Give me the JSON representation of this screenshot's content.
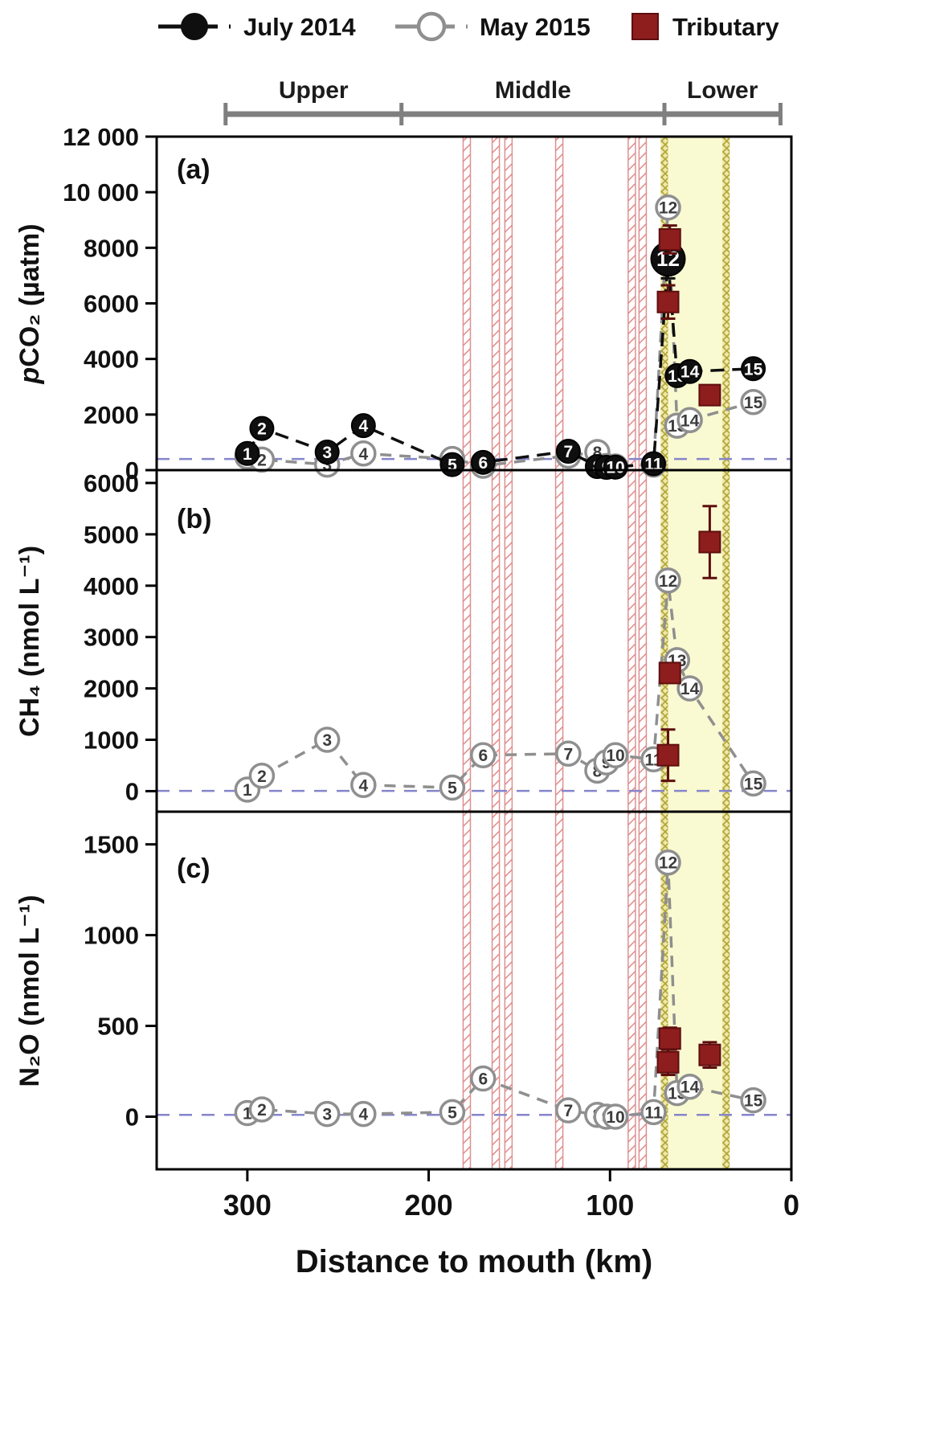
{
  "figure": {
    "background": "#ffffff",
    "colors": {
      "july_2014": "#0f0f0f",
      "may_2015": "#8f8f8f",
      "tributary": "#8e1d1d",
      "reference_line": "#8585cc",
      "estuary_zone_fill": "#fafad2",
      "tributary_band_hatch": "#e38a8a",
      "region_bar": "#7f7f7f"
    }
  },
  "legend": {
    "items": [
      {
        "label": "July 2014",
        "marker": "filled-circle"
      },
      {
        "label": "May 2015",
        "marker": "open-circle"
      },
      {
        "label": "Tributary",
        "marker": "filled-square"
      }
    ]
  },
  "region_bar": {
    "regions": [
      {
        "label": "Upper",
        "from_km": 312,
        "to_km": 215
      },
      {
        "label": "Middle",
        "from_km": 215,
        "to_km": 70
      },
      {
        "label": "Lower",
        "from_km": 70,
        "to_km": 6
      }
    ]
  },
  "xaxis": {
    "title": "Distance to mouth (km)",
    "ticks": [
      300,
      200,
      100,
      0
    ],
    "range_km": [
      350,
      0
    ],
    "reversed": true
  },
  "overlays": {
    "tributary_band_km": [
      179,
      163,
      156,
      128,
      88,
      82
    ],
    "tributary_band_width_km": 4,
    "estuary_zone_km": [
      72,
      34
    ]
  },
  "chart_data": [
    {
      "type": "line",
      "panel": "a",
      "tag": "(a)",
      "ylabel": "pCO2 (µatm)",
      "ylabel_italic": "p",
      "ylabel_text": "CO₂ (µatm)",
      "ylim": [
        0,
        12000
      ],
      "yticks": [
        {
          "value": 0,
          "label": "0"
        },
        {
          "value": 2000,
          "label": "2000"
        },
        {
          "value": 4000,
          "label": "4000"
        },
        {
          "value": 6000,
          "label": "6000"
        },
        {
          "value": 8000,
          "label": "8000"
        },
        {
          "value": 10000,
          "label": "10 000"
        },
        {
          "value": 12000,
          "label": "12 000"
        }
      ],
      "ref_line_y": 400,
      "series": [
        {
          "name": "May 2015",
          "marker": "open-circle",
          "color": "#8f8f8f",
          "points": [
            {
              "n": 1,
              "x": 300,
              "y": 480
            },
            {
              "n": 2,
              "x": 292,
              "y": 380
            },
            {
              "n": 3,
              "x": 256,
              "y": 200
            },
            {
              "n": 4,
              "x": 236,
              "y": 600
            },
            {
              "n": 5,
              "x": 187,
              "y": 400
            },
            {
              "n": 6,
              "x": 170,
              "y": 160
            },
            {
              "n": 7,
              "x": 123,
              "y": 520
            },
            {
              "n": 8,
              "x": 107,
              "y": 650
            },
            {
              "n": 9,
              "x": 102,
              "y": 150
            },
            {
              "n": 10,
              "x": 97,
              "y": 130
            },
            {
              "n": 11,
              "x": 76,
              "y": 200
            },
            {
              "n": 12,
              "x": 68,
              "y": 9450
            },
            {
              "n": 13,
              "x": 63,
              "y": 1600
            },
            {
              "n": 14,
              "x": 56,
              "y": 1800
            },
            {
              "n": 15,
              "x": 21,
              "y": 2450
            }
          ]
        },
        {
          "name": "July 2014",
          "marker": "filled-circle",
          "color": "#0f0f0f",
          "points": [
            {
              "n": 1,
              "x": 300,
              "y": 600
            },
            {
              "n": 2,
              "x": 292,
              "y": 1500
            },
            {
              "n": 3,
              "x": 256,
              "y": 650
            },
            {
              "n": 4,
              "x": 236,
              "y": 1600
            },
            {
              "n": 5,
              "x": 187,
              "y": 200
            },
            {
              "n": 6,
              "x": 170,
              "y": 280
            },
            {
              "n": 7,
              "x": 123,
              "y": 680
            },
            {
              "n": 8,
              "x": 107,
              "y": 130
            },
            {
              "n": 9,
              "x": 102,
              "y": 100
            },
            {
              "n": 10,
              "x": 97,
              "y": 110
            },
            {
              "n": 11,
              "x": 76,
              "y": 230
            },
            {
              "n": 12,
              "x": 68,
              "y": 7600,
              "err": 700,
              "big": true
            },
            {
              "n": 13,
              "x": 63,
              "y": 3400
            },
            {
              "n": 14,
              "x": 56,
              "y": 3550
            },
            {
              "n": 15,
              "x": 21,
              "y": 3650
            }
          ]
        },
        {
          "name": "Tributary",
          "marker": "filled-square",
          "color": "#8e1d1d",
          "points": [
            {
              "x": 67,
              "y": 8300,
              "err": 500
            },
            {
              "x": 68,
              "y": 6050,
              "err": 600
            },
            {
              "x": 45,
              "y": 2700,
              "err": 350
            }
          ]
        }
      ]
    },
    {
      "type": "line",
      "panel": "b",
      "tag": "(b)",
      "ylabel": "CH4 (nmol L-1)",
      "ylabel_italic": "",
      "ylabel_text": "CH₄ (nmol L⁻¹)",
      "ylim": [
        -400,
        6250
      ],
      "yticks": [
        {
          "value": 0,
          "label": "0"
        },
        {
          "value": 1000,
          "label": "1000"
        },
        {
          "value": 2000,
          "label": "2000"
        },
        {
          "value": 3000,
          "label": "3000"
        },
        {
          "value": 4000,
          "label": "4000"
        },
        {
          "value": 5000,
          "label": "5000"
        },
        {
          "value": 6000,
          "label": "6000"
        }
      ],
      "ref_line_y": 5,
      "series": [
        {
          "name": "May 2015",
          "marker": "open-circle",
          "color": "#8f8f8f",
          "points": [
            {
              "n": 1,
              "x": 300,
              "y": 30
            },
            {
              "n": 2,
              "x": 292,
              "y": 300
            },
            {
              "n": 3,
              "x": 256,
              "y": 1000
            },
            {
              "n": 4,
              "x": 236,
              "y": 120
            },
            {
              "n": 5,
              "x": 187,
              "y": 70
            },
            {
              "n": 6,
              "x": 170,
              "y": 700
            },
            {
              "n": 7,
              "x": 123,
              "y": 730
            },
            {
              "n": 8,
              "x": 107,
              "y": 400
            },
            {
              "n": 9,
              "x": 102,
              "y": 560
            },
            {
              "n": 10,
              "x": 97,
              "y": 700
            },
            {
              "n": 11,
              "x": 76,
              "y": 620
            },
            {
              "n": 12,
              "x": 68,
              "y": 4100
            },
            {
              "n": 13,
              "x": 63,
              "y": 2550
            },
            {
              "n": 14,
              "x": 56,
              "y": 2000
            },
            {
              "n": 15,
              "x": 21,
              "y": 150
            }
          ]
        },
        {
          "name": "Tributary",
          "marker": "filled-square",
          "color": "#8e1d1d",
          "points": [
            {
              "x": 67,
              "y": 2300
            },
            {
              "x": 68,
              "y": 700,
              "err": 500
            },
            {
              "x": 45,
              "y": 4850,
              "err": 700
            }
          ]
        }
      ]
    },
    {
      "type": "line",
      "panel": "c",
      "tag": "(c)",
      "ylabel": "N2O (nmol L-1)",
      "ylabel_italic": "",
      "ylabel_text": "N₂O (nmol L⁻¹)",
      "ylim": [
        -290,
        1680
      ],
      "yticks": [
        {
          "value": 0,
          "label": "0"
        },
        {
          "value": 500,
          "label": "500"
        },
        {
          "value": 1000,
          "label": "1000"
        },
        {
          "value": 1500,
          "label": "1500"
        }
      ],
      "ref_line_y": 10,
      "series": [
        {
          "name": "May 2015",
          "marker": "open-circle",
          "color": "#8f8f8f",
          "points": [
            {
              "n": 1,
              "x": 300,
              "y": 20
            },
            {
              "n": 2,
              "x": 292,
              "y": 40
            },
            {
              "n": 3,
              "x": 256,
              "y": 15
            },
            {
              "n": 4,
              "x": 236,
              "y": 15
            },
            {
              "n": 5,
              "x": 187,
              "y": 25
            },
            {
              "n": 6,
              "x": 170,
              "y": 210
            },
            {
              "n": 7,
              "x": 123,
              "y": 35
            },
            {
              "n": 8,
              "x": 107,
              "y": 10
            },
            {
              "n": 9,
              "x": 102,
              "y": 0
            },
            {
              "n": 10,
              "x": 97,
              "y": 0
            },
            {
              "n": 11,
              "x": 76,
              "y": 25
            },
            {
              "n": 12,
              "x": 68,
              "y": 1400
            },
            {
              "n": 13,
              "x": 63,
              "y": 130
            },
            {
              "n": 14,
              "x": 56,
              "y": 165
            },
            {
              "n": 15,
              "x": 21,
              "y": 90
            }
          ]
        },
        {
          "name": "Tributary",
          "marker": "filled-square",
          "color": "#8e1d1d",
          "points": [
            {
              "x": 68,
              "y": 300,
              "err": 70
            },
            {
              "x": 67,
              "y": 430,
              "err": 60
            },
            {
              "x": 45,
              "y": 340,
              "err": 70
            }
          ]
        }
      ]
    }
  ]
}
